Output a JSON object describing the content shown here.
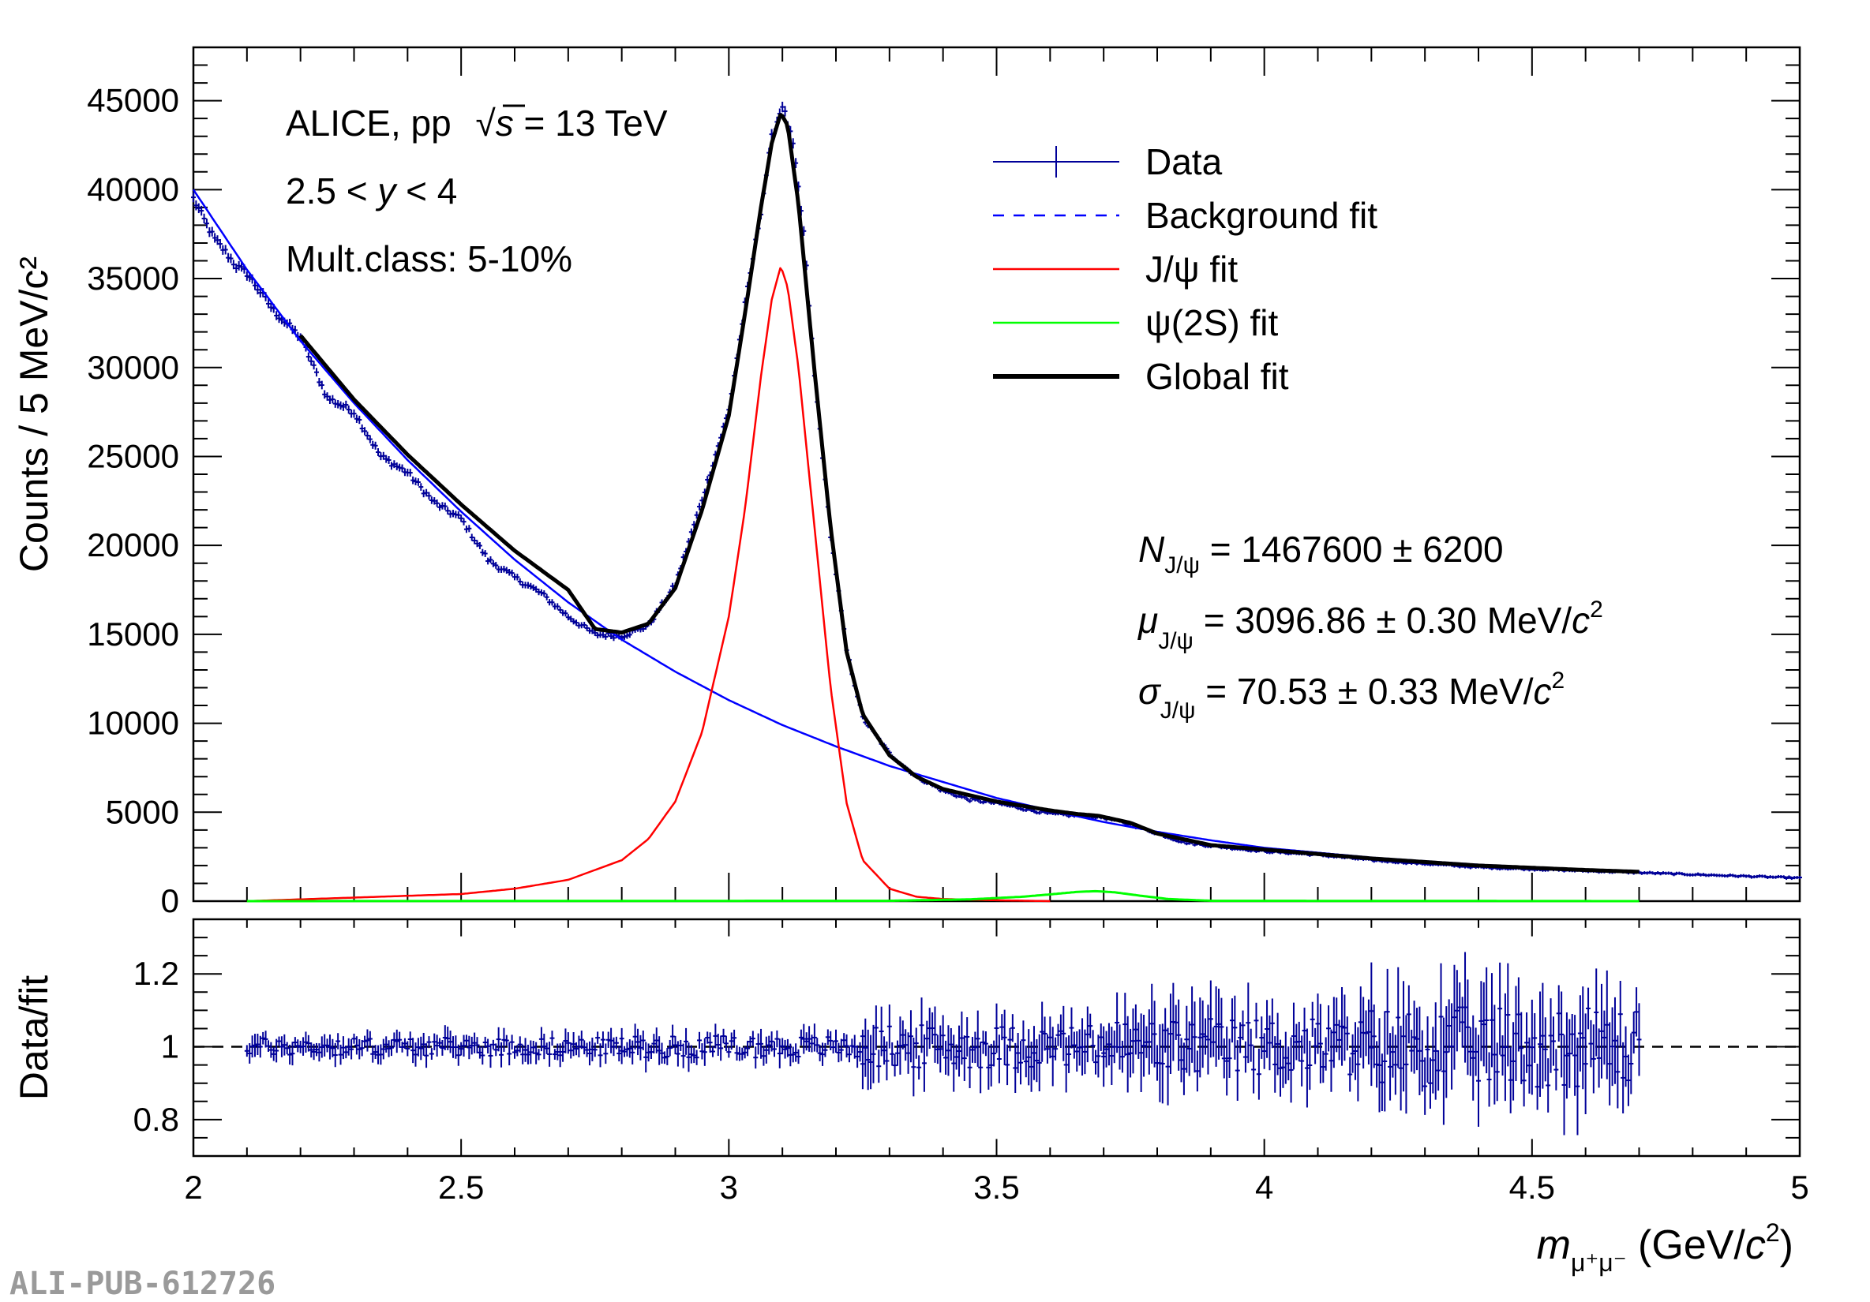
{
  "watermark": "ALI-PUB-612726",
  "chart_data": [
    {
      "type": "line",
      "panel": "top",
      "ylabel": "Counts / 5 MeV/c²",
      "xlim": [
        2,
        5
      ],
      "ylim": [
        0,
        48000
      ],
      "yticks": [
        "0",
        "5000",
        "10000",
        "15000",
        "20000",
        "25000",
        "30000",
        "35000",
        "40000",
        "45000"
      ],
      "yticks_values": [
        0,
        5000,
        10000,
        15000,
        20000,
        25000,
        30000,
        35000,
        40000,
        45000
      ],
      "annotations": {
        "line1_prefix": "ALICE, pp",
        "line1_sqrt": "√",
        "line1_s": "s",
        "line1_suffix": " = 13 TeV",
        "line2_prefix": "2.5 < ",
        "line2_var": "y",
        "line2_suffix": " < 4",
        "line3": "Mult.class: 5-10%"
      },
      "legend": [
        {
          "label": "Data",
          "color": "#000099",
          "style": "data"
        },
        {
          "label": "Background fit",
          "color": "#0000ff",
          "style": "dashed"
        },
        {
          "label": "J/ψ fit",
          "color": "#ff0000",
          "style": "solid"
        },
        {
          "label": "ψ(2S) fit",
          "color": "#00ff00",
          "style": "solid"
        },
        {
          "label": "Global fit",
          "color": "#000000",
          "style": "thick"
        }
      ],
      "fit_results": {
        "n_sym": "N",
        "n_sub": "J/ψ",
        "n_text": " = 1467600 ± 6200",
        "mu_sym": "μ",
        "mu_sub": "J/ψ",
        "mu_text": " = 3096.86 ± 0.30 MeV/",
        "mu_c": "c",
        "mu_sup": "2",
        "sigma_sym": "σ",
        "sigma_sub": "J/ψ",
        "sigma_text": " = 70.53 ± 0.33 MeV/",
        "sigma_c": "c",
        "sigma_sup": "2"
      },
      "series": [
        {
          "name": "Background fit",
          "color": "#0000ff",
          "x": [
            2.0,
            2.1,
            2.2,
            2.3,
            2.4,
            2.5,
            2.6,
            2.7,
            2.8,
            2.9,
            3.0,
            3.1,
            3.2,
            3.3,
            3.4,
            3.5,
            3.6,
            3.7,
            3.8,
            3.9,
            4.0,
            4.2,
            4.4,
            4.6,
            4.7
          ],
          "y": [
            40000,
            35500,
            31500,
            28000,
            24800,
            21900,
            19200,
            16800,
            14700,
            12900,
            11300,
            9900,
            8700,
            7600,
            6700,
            5800,
            5100,
            4450,
            3900,
            3420,
            3000,
            2450,
            2050,
            1780,
            1650
          ]
        },
        {
          "name": "J/ψ fit",
          "color": "#ff0000",
          "x": [
            2.1,
            2.3,
            2.5,
            2.6,
            2.7,
            2.8,
            2.85,
            2.9,
            2.95,
            3.0,
            3.03,
            3.06,
            3.08,
            3.097,
            3.11,
            3.13,
            3.16,
            3.19,
            3.22,
            3.25,
            3.3,
            3.35,
            3.4,
            3.5,
            3.6
          ],
          "y": [
            0,
            200,
            400,
            700,
            1200,
            2300,
            3500,
            5600,
            9500,
            16000,
            22000,
            29500,
            33800,
            35700,
            34500,
            30000,
            21000,
            12000,
            5500,
            2300,
            700,
            250,
            120,
            50,
            0
          ]
        },
        {
          "name": "ψ(2S) fit",
          "color": "#00ff00",
          "x": [
            2.1,
            3.3,
            3.45,
            3.55,
            3.6,
            3.65,
            3.686,
            3.72,
            3.77,
            3.82,
            3.9,
            4.7
          ],
          "y": [
            0,
            20,
            100,
            250,
            380,
            520,
            560,
            500,
            300,
            120,
            20,
            0
          ]
        },
        {
          "name": "Global fit",
          "color": "#000000",
          "x": [
            2.2,
            2.3,
            2.4,
            2.5,
            2.6,
            2.7,
            2.75,
            2.8,
            2.85,
            2.9,
            2.95,
            3.0,
            3.03,
            3.06,
            3.08,
            3.097,
            3.11,
            3.13,
            3.16,
            3.19,
            3.22,
            3.25,
            3.3,
            3.35,
            3.4,
            3.5,
            3.6,
            3.65,
            3.69,
            3.75,
            3.8,
            3.9,
            4.0,
            4.2,
            4.4,
            4.6,
            4.7
          ],
          "y": [
            31800,
            28200,
            25100,
            22300,
            19700,
            17500,
            15300,
            15100,
            15600,
            17600,
            22000,
            27300,
            33000,
            39000,
            42600,
            44300,
            43600,
            39200,
            29800,
            21000,
            14000,
            10500,
            8200,
            7000,
            6300,
            5600,
            5100,
            4900,
            4800,
            4400,
            3800,
            3150,
            2900,
            2400,
            2000,
            1750,
            1650
          ]
        }
      ],
      "data_points": {
        "name": "Data",
        "color": "#000099",
        "x": [
          2.0,
          2.02,
          2.04,
          2.06,
          2.08,
          2.1,
          2.15,
          2.2,
          2.25,
          2.3,
          2.35,
          2.4,
          2.45,
          2.5,
          2.55,
          2.6,
          2.65,
          2.7,
          2.75,
          2.8,
          2.85,
          2.9,
          2.95,
          3.0,
          3.03,
          3.06,
          3.08,
          3.1,
          3.12,
          3.14,
          3.16,
          3.19,
          3.22,
          3.25,
          3.3,
          3.35,
          3.4,
          3.45,
          3.5,
          3.55,
          3.6,
          3.65,
          3.7,
          3.75,
          3.8,
          3.85,
          3.9,
          4.0,
          4.1,
          4.2,
          4.3,
          4.4,
          4.5,
          4.6,
          4.7,
          4.8,
          4.9,
          5.0
        ],
        "y": [
          39500,
          38300,
          37200,
          36500,
          35700,
          35300,
          33200,
          31700,
          28300,
          27500,
          25000,
          24100,
          22400,
          21500,
          19200,
          18200,
          17300,
          16000,
          15000,
          14900,
          15500,
          17800,
          22600,
          27600,
          33500,
          38800,
          42900,
          44800,
          42500,
          37600,
          29500,
          20600,
          14100,
          10300,
          8300,
          7000,
          6200,
          5700,
          5500,
          5200,
          4900,
          4800,
          4700,
          4300,
          3800,
          3300,
          3100,
          2800,
          2600,
          2300,
          2100,
          1900,
          1800,
          1700,
          1600,
          1500,
          1400,
          1300
        ]
      }
    },
    {
      "type": "scatter",
      "panel": "bottom",
      "xlabel": "m_μ⁺μ⁻ (GeV/c²)",
      "xlabel_m": "m",
      "xlabel_sub": "μ⁺μ⁻",
      "xlabel_unit_prefix": " (GeV/",
      "xlabel_unit_c": "c",
      "xlabel_unit_sup": "2",
      "xlabel_unit_suffix": ")",
      "ylabel": "Data/fit",
      "xlim": [
        2,
        5
      ],
      "ylim": [
        0.7,
        1.35
      ],
      "xticks": [
        "2",
        "2.5",
        "3",
        "3.5",
        "4",
        "4.5",
        "5"
      ],
      "xticks_values": [
        2,
        2.5,
        3,
        3.5,
        4,
        4.5,
        5
      ],
      "yticks": [
        "0.8",
        "1",
        "1.2"
      ],
      "yticks_values": [
        0.8,
        1.0,
        1.2
      ],
      "reference_line": 1.0,
      "ratio_envelope": [
        {
          "x_from": 2.1,
          "x_to": 2.8,
          "spread": 0.05
        },
        {
          "x_from": 2.8,
          "x_to": 3.25,
          "spread": 0.06
        },
        {
          "x_from": 3.25,
          "x_to": 3.7,
          "spread": 0.12
        },
        {
          "x_from": 3.7,
          "x_to": 4.2,
          "spread": 0.16
        },
        {
          "x_from": 4.2,
          "x_to": 4.7,
          "spread": 0.22
        }
      ]
    }
  ]
}
